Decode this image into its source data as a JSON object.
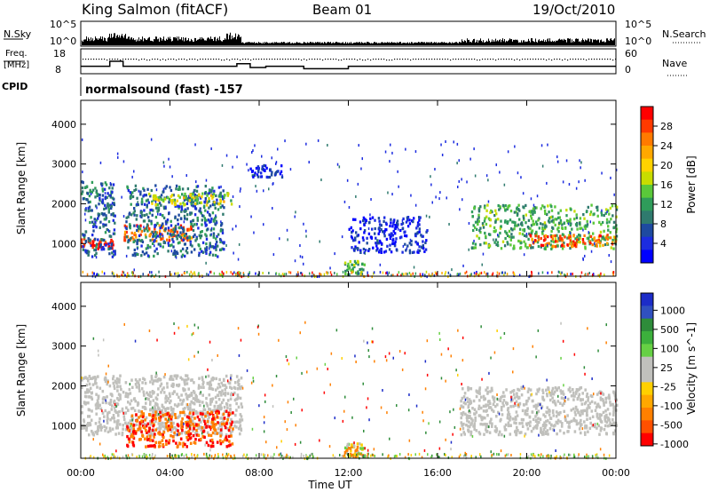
{
  "header": {
    "station": "King Salmon (fitACF)",
    "beam": "Beam 01",
    "date": "19/Oct/2010"
  },
  "strip": {
    "nsky_label": "N.Sky",
    "nsky_ticks": [
      "10^5",
      "10^0"
    ],
    "nsearch_label": "N.Search",
    "nsearch_ticks": [
      "10^5",
      "10^0"
    ],
    "freq_label_1": "Freq.",
    "freq_label_2": "[MHz]",
    "freq_ticks": [
      "18",
      "8"
    ],
    "nave_label": "Nave",
    "nave_ticks": [
      "60",
      "0"
    ],
    "cpid_label": "CPID",
    "cpid_text": "normalsound (fast) -157"
  },
  "panels": {
    "ylabel": "Slant Range [km]",
    "yticks": [
      "4000",
      "3000",
      "2000",
      "1000"
    ],
    "xticks": [
      "00:00",
      "04:00",
      "08:00",
      "12:00",
      "16:00",
      "20:00",
      "00:00"
    ],
    "xlabel": "Time UT"
  },
  "power_scale": {
    "label": "Power [dB]",
    "ticks": [
      "28",
      "24",
      "20",
      "16",
      "12",
      "8",
      "4"
    ],
    "colors": [
      "#ff0000",
      "#ff3a00",
      "#ff7a00",
      "#ffa800",
      "#ffd200",
      "#c8dc00",
      "#5ac83a",
      "#2f9c5a",
      "#2f7a6e",
      "#1e4aa0",
      "#1c2ce0",
      "#0000ff"
    ]
  },
  "velocity_scale": {
    "label": "Velocity [m s^-1]",
    "ticks": [
      "1000",
      "500",
      "100",
      "25",
      "-25",
      "-100",
      "-500",
      "-1000"
    ],
    "colors": [
      "#1c2cc8",
      "#3050c0",
      "#2e8c3a",
      "#3cb03c",
      "#66d044",
      "#c0c0bc",
      "#c0c0bc",
      "#ffd000",
      "#ffa800",
      "#ff8000",
      "#ff5000",
      "#ff0000"
    ]
  },
  "chart_data": {
    "type": "heatmap",
    "title": "King Salmon (fitACF)  Beam 01  19/Oct/2010",
    "xlabel": "Time UT",
    "ylabel": "Slant Range [km]",
    "xlim": [
      0,
      24
    ],
    "ylim": [
      180,
      4600
    ],
    "x_ticks_hours": [
      0,
      4,
      8,
      12,
      16,
      20,
      24
    ],
    "y_ticks": [
      1000,
      2000,
      3000,
      4000
    ],
    "frequency_MHz": [
      {
        "start": 0,
        "end": 1.3,
        "value": 11
      },
      {
        "start": 1.3,
        "end": 1.9,
        "value": 13
      },
      {
        "start": 1.9,
        "end": 7.0,
        "value": 11
      },
      {
        "start": 7.0,
        "end": 7.6,
        "value": 12
      },
      {
        "start": 7.6,
        "end": 8.3,
        "value": 10.5
      },
      {
        "start": 8.3,
        "end": 10.0,
        "value": 11
      },
      {
        "start": 10.0,
        "end": 12.0,
        "value": 10
      },
      {
        "start": 12.0,
        "end": 24,
        "value": 11
      }
    ],
    "power_regions": [
      {
        "t0": 0.0,
        "t1": 1.5,
        "r0": 900,
        "r1": 1150,
        "db": 28
      },
      {
        "t0": 0.0,
        "t1": 1.5,
        "r0": 700,
        "r1": 2600,
        "db": 8
      },
      {
        "t0": 1.9,
        "t1": 5.0,
        "r0": 1100,
        "r1": 1500,
        "db": 24
      },
      {
        "t0": 2.0,
        "t1": 6.4,
        "r0": 700,
        "r1": 2500,
        "db": 8
      },
      {
        "t0": 3.0,
        "t1": 6.8,
        "r0": 2000,
        "r1": 2300,
        "db": 16
      },
      {
        "t0": 7.5,
        "t1": 9.0,
        "r0": 2700,
        "r1": 3000,
        "db": 4
      },
      {
        "t0": 11.8,
        "t1": 12.7,
        "r0": 250,
        "r1": 600,
        "db": 12
      },
      {
        "t0": 12.0,
        "t1": 15.5,
        "r0": 800,
        "r1": 1700,
        "db": 4
      },
      {
        "t0": 17.5,
        "t1": 24,
        "r0": 900,
        "r1": 2000,
        "db": 12
      },
      {
        "t0": 20.0,
        "t1": 24,
        "r0": 950,
        "r1": 1250,
        "db": 24
      }
    ],
    "velocity_regions": [
      {
        "t0": 0.0,
        "t1": 7.2,
        "r0": 800,
        "r1": 2300,
        "v": 0
      },
      {
        "t0": 2.0,
        "t1": 6.8,
        "r0": 500,
        "r1": 1400,
        "v": -500
      },
      {
        "t0": 11.8,
        "t1": 12.7,
        "r0": 250,
        "r1": 600,
        "v": -100
      },
      {
        "t0": 17.0,
        "t1": 24,
        "r0": 800,
        "r1": 2000,
        "v": 0
      }
    ]
  }
}
